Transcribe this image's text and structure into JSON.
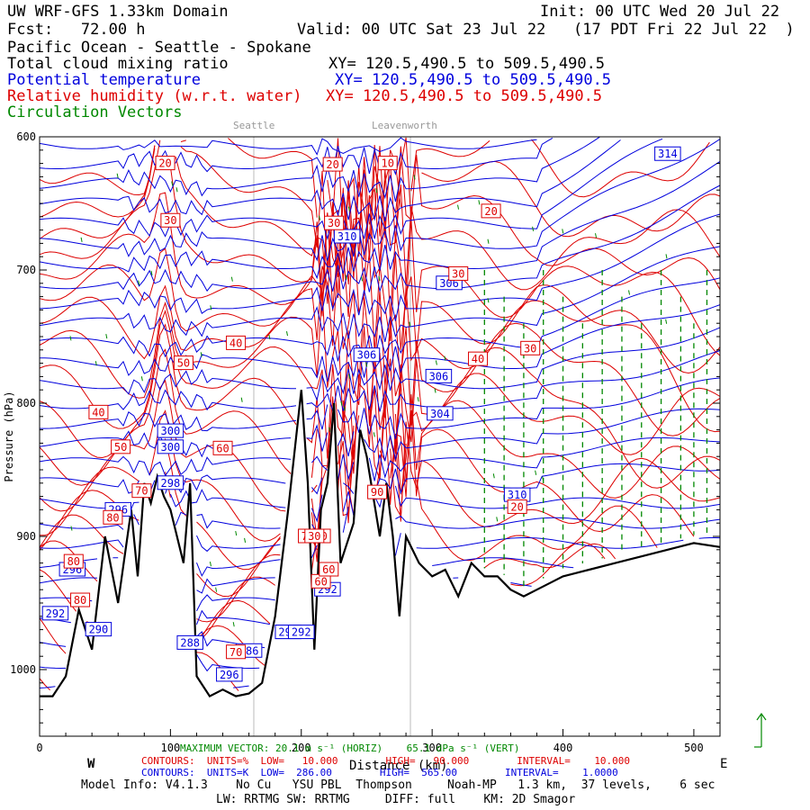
{
  "header": {
    "model": "UW WRF-GFS 1.33km Domain",
    "init": "Init: 00 UTC Wed 20 Jul 22",
    "fcst": "Fcst:   72.00 h",
    "valid": "Valid: 00 UTC Sat 23 Jul 22   (17 PDT Fri 22 Jul 22  )",
    "region": "Pacific Ocean - Seattle - Spokane",
    "field1": "Total cloud mixing ratio",
    "field2": "Potential temperature",
    "field3": "Relative humidity (w.r.t. water)",
    "field4": "Circulation Vectors",
    "xy1": "XY= 120.5,490.5 to 509.5,490.5",
    "xy2": "XY= 120.5,490.5 to 509.5,490.5",
    "xy3": "XY= 120.5,490.5 to 509.5,490.5"
  },
  "locations": [
    "Seattle",
    "Leavenworth"
  ],
  "colors": {
    "theta": "#0000dd",
    "rh": "#dd0000",
    "vectors": "#008800",
    "terrain": "#000000"
  },
  "chart_data": {
    "type": "line",
    "xlabel": "Distance (km)",
    "ylabel": "Pressure (hPa)",
    "xlim": [
      0,
      520
    ],
    "ylim": [
      1050,
      600
    ],
    "x_ticks": [
      "0",
      "100",
      "200",
      "300",
      "400",
      "500"
    ],
    "y_ticks": [
      "600",
      "700",
      "800",
      "900",
      "1000"
    ],
    "west_label": "W",
    "east_label": "E",
    "terrain": {
      "x": [
        0,
        10,
        20,
        30,
        40,
        50,
        60,
        70,
        75,
        80,
        85,
        90,
        95,
        100,
        110,
        115,
        120,
        130,
        140,
        150,
        160,
        170,
        180,
        190,
        200,
        205,
        210,
        215,
        220,
        225,
        230,
        240,
        245,
        250,
        255,
        260,
        265,
        270,
        275,
        280,
        290,
        300,
        310,
        320,
        330,
        340,
        350,
        360,
        370,
        380,
        390,
        400,
        420,
        440,
        460,
        480,
        500,
        520
      ],
      "p": [
        1020,
        1020,
        1005,
        955,
        985,
        900,
        950,
        880,
        930,
        860,
        875,
        855,
        870,
        880,
        920,
        860,
        1005,
        1020,
        1015,
        1020,
        1018,
        1010,
        960,
        880,
        790,
        860,
        985,
        880,
        860,
        800,
        920,
        890,
        820,
        840,
        870,
        900,
        860,
        900,
        960,
        900,
        920,
        930,
        925,
        945,
        920,
        930,
        930,
        940,
        945,
        940,
        935,
        930,
        925,
        920,
        915,
        910,
        905,
        908
      ]
    },
    "theta_labels": [
      "314",
      "310",
      "306",
      "306",
      "306",
      "304",
      "300",
      "300",
      "298",
      "296",
      "296",
      "292",
      "292",
      "290",
      "288",
      "286",
      "296",
      "294",
      "294",
      "292",
      "310"
    ],
    "rh_labels": [
      "10",
      "20",
      "20",
      "20",
      "30",
      "30",
      "30",
      "40",
      "40",
      "40",
      "50",
      "50",
      "60",
      "60",
      "60",
      "70",
      "70",
      "70",
      "70",
      "80",
      "80",
      "80",
      "90",
      "30",
      "20",
      "30"
    ],
    "max_vector": "MAXIMUM VECTOR: 20.1 m s⁻¹ (HORIZ)    65.1 dPa s⁻¹ (VERT)"
  },
  "footer": {
    "contours_rh": "CONTOURS:  UNITS=%  LOW=   10.000        HIGH=   90.000        INTERVAL=    10.000",
    "contours_k": "CONTOURS:  UNITS=K  LOW=  286.00        HIGH=  565.00        INTERVAL=    1.0000",
    "model_info": "Model Info: V4.1.3    No Cu   YSU PBL  Thompson     Noah-MP   1.3 km,  37 levels,    6 sec",
    "model_info2": "LW: RRTMG SW: RRTMG     DIFF: full    KM: 2D Smagor"
  }
}
